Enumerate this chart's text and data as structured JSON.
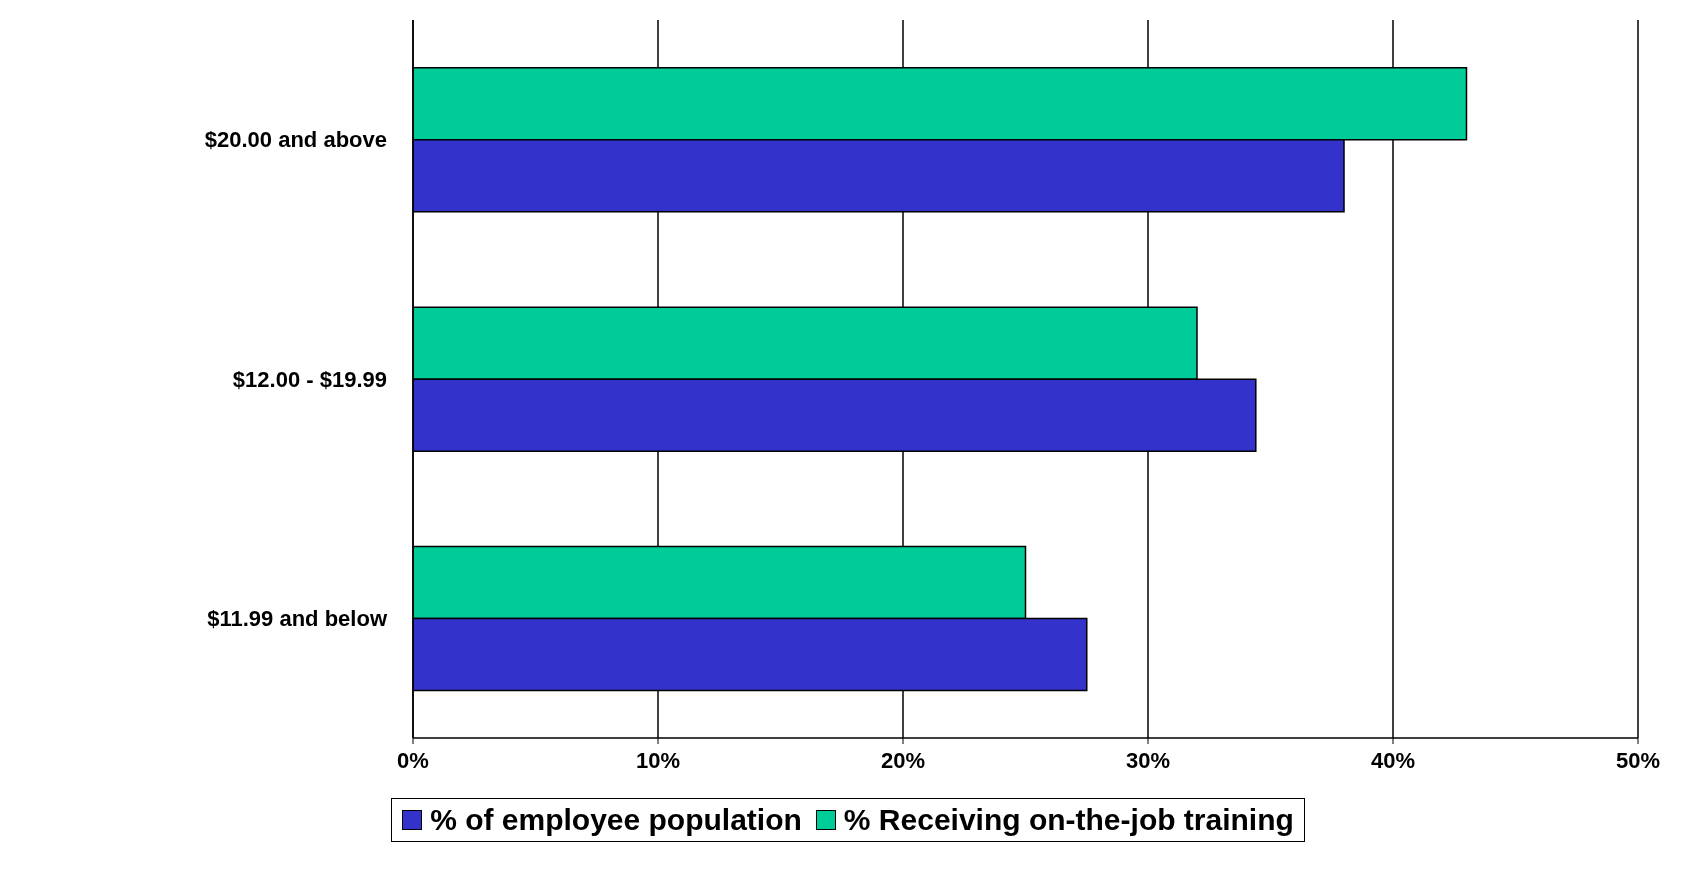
{
  "chart_data": {
    "type": "bar",
    "orientation": "horizontal",
    "categories": [
      "$20.00 and above",
      "$12.00 - $19.99",
      "$11.99 and below"
    ],
    "series": [
      {
        "name": "% of employee population",
        "color": "#3333cc",
        "values": [
          38,
          34.4,
          27.5
        ]
      },
      {
        "name": "% Receiving on-the-job training",
        "color": "#00cc99",
        "values": [
          43,
          32,
          25
        ]
      }
    ],
    "xlim": [
      0,
      50
    ],
    "xticks": [
      {
        "value": 0,
        "label": "0%"
      },
      {
        "value": 10,
        "label": "10%"
      },
      {
        "value": 20,
        "label": "20%"
      },
      {
        "value": 30,
        "label": "30%"
      },
      {
        "value": 40,
        "label": "40%"
      },
      {
        "value": 50,
        "label": "50%"
      }
    ],
    "grid": "x",
    "legend": "bottom"
  }
}
